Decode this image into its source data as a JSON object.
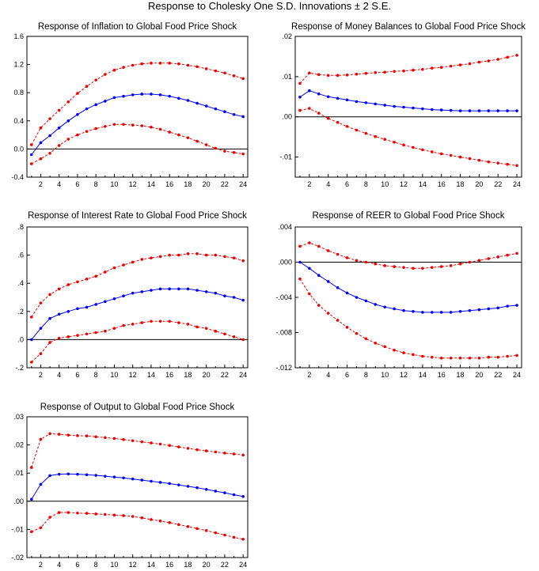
{
  "title": "Response to Cholesky One S.D. Innovations ± 2 S.E.",
  "colors": {
    "response": "#0000ff",
    "band": "#ee0000",
    "axis": "#000000"
  },
  "chart_data": [
    {
      "type": "line",
      "title": "Response of Inflation to Global Food Price Shock",
      "x": [
        1,
        2,
        3,
        4,
        5,
        6,
        7,
        8,
        9,
        10,
        11,
        12,
        13,
        14,
        15,
        16,
        17,
        18,
        19,
        20,
        21,
        22,
        23,
        24
      ],
      "x_tick_labels": [
        "2",
        "4",
        "6",
        "8",
        "10",
        "12",
        "14",
        "16",
        "18",
        "20",
        "22",
        "24"
      ],
      "x_tick_values": [
        2,
        4,
        6,
        8,
        10,
        12,
        14,
        16,
        18,
        20,
        22,
        24
      ],
      "ylim": [
        -0.4,
        1.6
      ],
      "y_tick_values": [
        -0.4,
        0.0,
        0.4,
        0.8,
        1.2,
        1.6
      ],
      "y_tick_labels": [
        "-0.4",
        "0.0",
        "0.4",
        "0.8",
        "1.2",
        "1.6"
      ],
      "series": [
        {
          "role": "upper",
          "values": [
            0.06,
            0.3,
            0.43,
            0.55,
            0.67,
            0.79,
            0.89,
            0.98,
            1.06,
            1.12,
            1.16,
            1.19,
            1.21,
            1.22,
            1.22,
            1.22,
            1.21,
            1.19,
            1.17,
            1.14,
            1.11,
            1.08,
            1.04,
            1.0
          ]
        },
        {
          "role": "response",
          "values": [
            -0.08,
            0.09,
            0.19,
            0.3,
            0.4,
            0.49,
            0.57,
            0.63,
            0.68,
            0.73,
            0.75,
            0.77,
            0.78,
            0.78,
            0.77,
            0.75,
            0.72,
            0.69,
            0.65,
            0.61,
            0.57,
            0.53,
            0.49,
            0.46
          ]
        },
        {
          "role": "lower",
          "values": [
            -0.21,
            -0.14,
            -0.06,
            0.05,
            0.14,
            0.2,
            0.25,
            0.29,
            0.32,
            0.35,
            0.35,
            0.34,
            0.33,
            0.31,
            0.28,
            0.24,
            0.2,
            0.16,
            0.11,
            0.06,
            0.01,
            -0.03,
            -0.05,
            -0.07
          ]
        }
      ]
    },
    {
      "type": "line",
      "title": "Response of Money Balances to Global Food Price Shock",
      "x": [
        1,
        2,
        3,
        4,
        5,
        6,
        7,
        8,
        9,
        10,
        11,
        12,
        13,
        14,
        15,
        16,
        17,
        18,
        19,
        20,
        21,
        22,
        23,
        24
      ],
      "x_tick_labels": [
        "2",
        "4",
        "6",
        "8",
        "10",
        "12",
        "14",
        "16",
        "18",
        "20",
        "22",
        "24"
      ],
      "x_tick_values": [
        2,
        4,
        6,
        8,
        10,
        12,
        14,
        16,
        18,
        20,
        22,
        24
      ],
      "ylim": [
        -0.015,
        0.02
      ],
      "y_tick_values": [
        -0.01,
        0.0,
        0.01,
        0.02
      ],
      "y_tick_labels": [
        "-.01",
        ".00",
        ".01",
        ".02"
      ],
      "series": [
        {
          "role": "upper",
          "values": [
            0.0083,
            0.0109,
            0.0105,
            0.0103,
            0.0103,
            0.0104,
            0.0106,
            0.0108,
            0.011,
            0.0111,
            0.0113,
            0.0114,
            0.0116,
            0.0118,
            0.0121,
            0.0123,
            0.0126,
            0.0129,
            0.0132,
            0.0136,
            0.0139,
            0.0143,
            0.0148,
            0.0153
          ]
        },
        {
          "role": "response",
          "values": [
            0.0049,
            0.0065,
            0.0057,
            0.005,
            0.0046,
            0.0042,
            0.0038,
            0.0035,
            0.0032,
            0.0029,
            0.0026,
            0.0024,
            0.0022,
            0.002,
            0.0018,
            0.0017,
            0.0016,
            0.0015,
            0.0015,
            0.0015,
            0.0015,
            0.0015,
            0.0015,
            0.0015
          ]
        },
        {
          "role": "lower",
          "values": [
            0.0016,
            0.0021,
            0.0009,
            -0.0004,
            -0.0014,
            -0.0024,
            -0.0033,
            -0.0041,
            -0.0049,
            -0.0056,
            -0.0063,
            -0.007,
            -0.0076,
            -0.0082,
            -0.0087,
            -0.0092,
            -0.0096,
            -0.01,
            -0.0104,
            -0.0108,
            -0.0112,
            -0.0115,
            -0.0118,
            -0.0121
          ]
        }
      ]
    },
    {
      "type": "line",
      "title": "Response of Interest Rate to Global Food Price Shock",
      "x": [
        1,
        2,
        3,
        4,
        5,
        6,
        7,
        8,
        9,
        10,
        11,
        12,
        13,
        14,
        15,
        16,
        17,
        18,
        19,
        20,
        21,
        22,
        23,
        24
      ],
      "x_tick_labels": [
        "2",
        "4",
        "6",
        "8",
        "10",
        "12",
        "14",
        "16",
        "18",
        "20",
        "22",
        "24"
      ],
      "x_tick_values": [
        2,
        4,
        6,
        8,
        10,
        12,
        14,
        16,
        18,
        20,
        22,
        24
      ],
      "ylim": [
        -0.2,
        0.8
      ],
      "y_tick_values": [
        -0.2,
        0.0,
        0.2,
        0.4,
        0.6,
        0.8
      ],
      "y_tick_labels": [
        "-.2",
        ".0",
        ".2",
        ".4",
        ".6",
        ".8"
      ],
      "series": [
        {
          "role": "upper",
          "values": [
            0.16,
            0.26,
            0.32,
            0.36,
            0.39,
            0.41,
            0.43,
            0.45,
            0.48,
            0.51,
            0.53,
            0.55,
            0.57,
            0.58,
            0.59,
            0.6,
            0.6,
            0.61,
            0.61,
            0.6,
            0.6,
            0.59,
            0.58,
            0.56
          ]
        },
        {
          "role": "response",
          "values": [
            0.0,
            0.08,
            0.15,
            0.18,
            0.2,
            0.22,
            0.23,
            0.25,
            0.27,
            0.29,
            0.31,
            0.33,
            0.34,
            0.35,
            0.36,
            0.36,
            0.36,
            0.36,
            0.35,
            0.34,
            0.33,
            0.31,
            0.3,
            0.28
          ]
        },
        {
          "role": "lower",
          "values": [
            -0.16,
            -0.1,
            -0.02,
            0.01,
            0.02,
            0.03,
            0.04,
            0.05,
            0.06,
            0.08,
            0.1,
            0.11,
            0.12,
            0.13,
            0.13,
            0.13,
            0.12,
            0.11,
            0.09,
            0.08,
            0.06,
            0.04,
            0.02,
            0.0
          ]
        }
      ]
    },
    {
      "type": "line",
      "title": "Response of REER to Global Food Price Shock",
      "x": [
        1,
        2,
        3,
        4,
        5,
        6,
        7,
        8,
        9,
        10,
        11,
        12,
        13,
        14,
        15,
        16,
        17,
        18,
        19,
        20,
        21,
        22,
        23,
        24
      ],
      "x_tick_labels": [
        "2",
        "4",
        "6",
        "8",
        "10",
        "12",
        "14",
        "16",
        "18",
        "20",
        "22",
        "24"
      ],
      "x_tick_values": [
        2,
        4,
        6,
        8,
        10,
        12,
        14,
        16,
        18,
        20,
        22,
        24
      ],
      "ylim": [
        -0.012,
        0.004
      ],
      "y_tick_values": [
        -0.012,
        -0.008,
        -0.004,
        0.0,
        0.004
      ],
      "y_tick_labels": [
        "-.012",
        "-.008",
        "-.004",
        ".000",
        ".004"
      ],
      "series": [
        {
          "role": "upper",
          "values": [
            0.0018,
            0.0022,
            0.0018,
            0.0013,
            0.0009,
            0.0005,
            0.0002,
            0.0,
            -0.0002,
            -0.0004,
            -0.0005,
            -0.0006,
            -0.0007,
            -0.0007,
            -0.0006,
            -0.0005,
            -0.0004,
            -0.0002,
            0.0,
            0.0002,
            0.0004,
            0.0006,
            0.0008,
            0.001
          ]
        },
        {
          "role": "response",
          "values": [
            0.0,
            -0.0007,
            -0.0015,
            -0.0022,
            -0.0029,
            -0.0035,
            -0.004,
            -0.0044,
            -0.0048,
            -0.0051,
            -0.0053,
            -0.0055,
            -0.0056,
            -0.0057,
            -0.0057,
            -0.0057,
            -0.0057,
            -0.0056,
            -0.0055,
            -0.0054,
            -0.0053,
            -0.0052,
            -0.005,
            -0.0049
          ]
        },
        {
          "role": "lower",
          "values": [
            -0.0019,
            -0.0036,
            -0.0049,
            -0.0058,
            -0.0066,
            -0.0074,
            -0.0081,
            -0.0087,
            -0.0092,
            -0.0096,
            -0.01,
            -0.0103,
            -0.0105,
            -0.0107,
            -0.0108,
            -0.0109,
            -0.0109,
            -0.0109,
            -0.0109,
            -0.0109,
            -0.0108,
            -0.0108,
            -0.0107,
            -0.0106
          ]
        }
      ]
    },
    {
      "type": "line",
      "title": "Response of Output to Global Food Price Shock",
      "x": [
        1,
        2,
        3,
        4,
        5,
        6,
        7,
        8,
        9,
        10,
        11,
        12,
        13,
        14,
        15,
        16,
        17,
        18,
        19,
        20,
        21,
        22,
        23,
        24
      ],
      "x_tick_labels": [
        "2",
        "4",
        "6",
        "8",
        "10",
        "12",
        "14",
        "16",
        "18",
        "20",
        "22",
        "24"
      ],
      "x_tick_values": [
        2,
        4,
        6,
        8,
        10,
        12,
        14,
        16,
        18,
        20,
        22,
        24
      ],
      "ylim": [
        -0.02,
        0.03
      ],
      "y_tick_values": [
        -0.02,
        -0.01,
        0.0,
        0.01,
        0.02,
        0.03
      ],
      "y_tick_labels": [
        "-.02",
        "-.01",
        ".00",
        ".01",
        ".02",
        ".03"
      ],
      "series": [
        {
          "role": "upper",
          "values": [
            0.012,
            0.022,
            0.024,
            0.0238,
            0.0235,
            0.0233,
            0.0232,
            0.0229,
            0.0226,
            0.0223,
            0.0219,
            0.0215,
            0.0211,
            0.0207,
            0.0203,
            0.0198,
            0.0193,
            0.0188,
            0.0183,
            0.0179,
            0.0175,
            0.0171,
            0.0168,
            0.0164
          ]
        },
        {
          "role": "response",
          "values": [
            0.0007,
            0.006,
            0.0091,
            0.0096,
            0.0097,
            0.0096,
            0.0094,
            0.0092,
            0.0089,
            0.0086,
            0.0083,
            0.0079,
            0.0075,
            0.0071,
            0.0067,
            0.0063,
            0.0058,
            0.0053,
            0.0048,
            0.0042,
            0.0036,
            0.003,
            0.0023,
            0.0017
          ]
        },
        {
          "role": "lower",
          "values": [
            -0.0108,
            -0.0094,
            -0.0057,
            -0.004,
            -0.004,
            -0.0042,
            -0.0043,
            -0.0045,
            -0.0047,
            -0.0049,
            -0.0051,
            -0.0054,
            -0.0059,
            -0.0065,
            -0.007,
            -0.0076,
            -0.0083,
            -0.009,
            -0.0097,
            -0.0104,
            -0.0112,
            -0.012,
            -0.0128,
            -0.0135
          ]
        }
      ]
    }
  ]
}
